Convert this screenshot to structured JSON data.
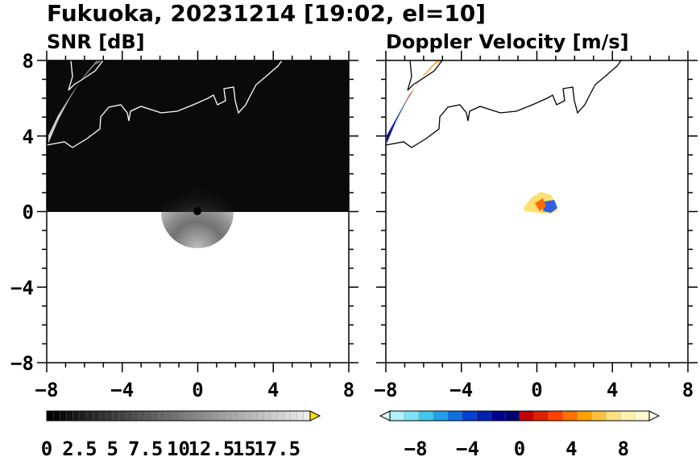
{
  "title": "Fukuoka, 20231214 [19:02, el=10]",
  "panels": [
    {
      "name": "snr",
      "subtitle": "SNR [dB]"
    },
    {
      "name": "doppler",
      "subtitle": "Doppler Velocity [m/s]"
    }
  ],
  "axes": {
    "x_ticks": [
      "-8",
      "-4",
      "0",
      "4",
      "8"
    ],
    "y_ticks": [
      "8",
      "4",
      "0",
      "-4",
      "-8"
    ]
  },
  "colorbars": {
    "snr": {
      "labels": [
        "0",
        "2.5",
        "5",
        "7.5",
        "10",
        "12.5",
        "15",
        "17.5"
      ],
      "range": [
        0,
        20
      ],
      "extend": "max"
    },
    "doppler": {
      "labels": [
        "-8",
        "-4",
        "0",
        "4",
        "8"
      ],
      "range": [
        -10,
        10
      ],
      "extend": "both"
    }
  },
  "chart_data": [
    {
      "type": "heatmap",
      "title": "SNR [dB]",
      "xlim": [
        -8,
        8
      ],
      "ylim": [
        -8,
        8
      ],
      "colormap": "grayscale",
      "coverage": "upper half (y > 0) dark background; bright band near x=-7..-5, y=4..8; weak clutter around origin"
    },
    {
      "type": "heatmap",
      "title": "Doppler Velocity [m/s]",
      "xlim": [
        -8,
        8
      ],
      "ylim": [
        -8,
        8
      ],
      "colormap": "blue-red diverging",
      "coverage": "echo band along coastline x=-8..-5, y=3.7..8 (blue to red to yellow); small patch near x=0..1, y=0..1"
    }
  ]
}
